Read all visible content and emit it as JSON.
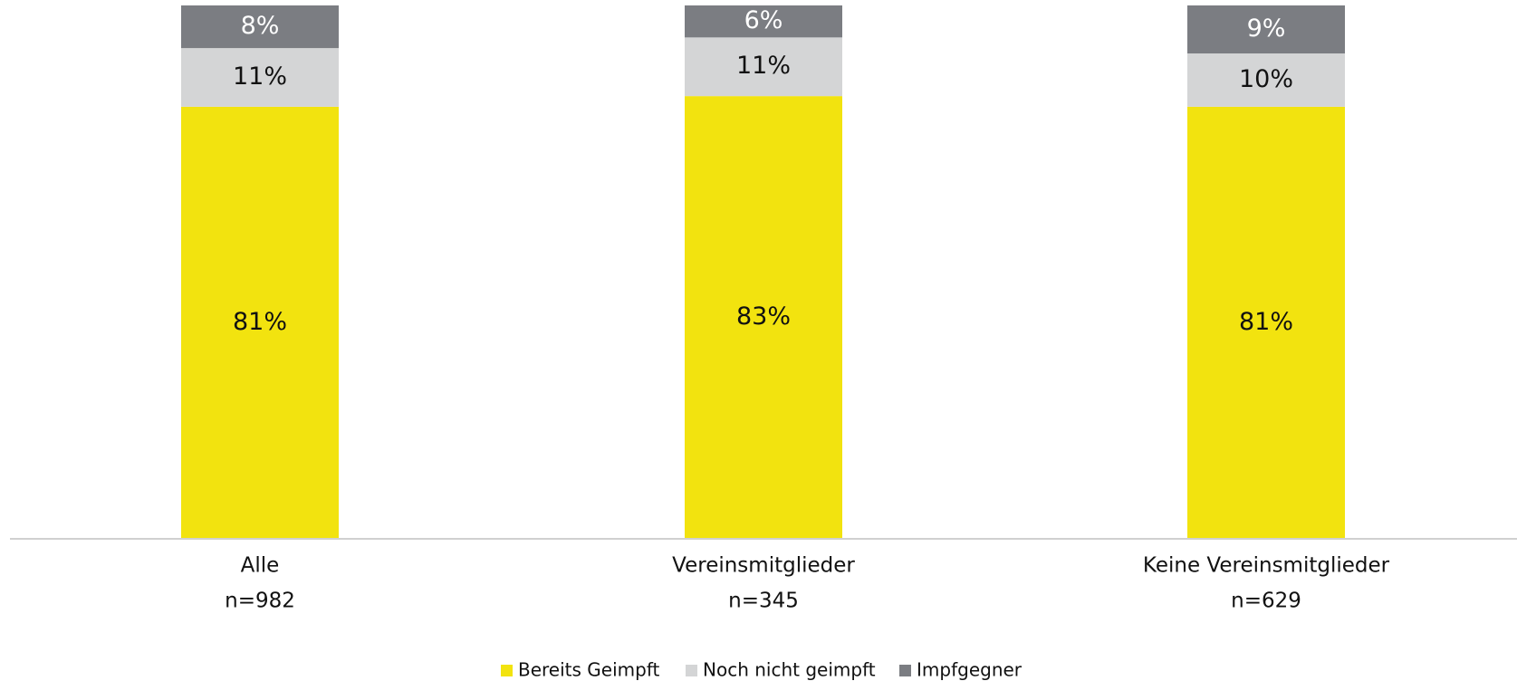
{
  "chart_data": {
    "type": "stacked_bar",
    "categories": [
      "Alle",
      "Vereinsmitglieder",
      "Keine Vereinsmitglieder"
    ],
    "sample_sizes": [
      "n=982",
      "n=345",
      "n=629"
    ],
    "ylim": [
      0,
      100
    ],
    "series": [
      {
        "name": "Bereits Geimpft",
        "color": "#f2e30f",
        "values": [
          81,
          83,
          81
        ],
        "value_labels": [
          "81%",
          "83%",
          "81%"
        ]
      },
      {
        "name": "Noch nicht geimpft",
        "color": "#d4d5d6",
        "values": [
          11,
          11,
          10
        ],
        "value_labels": [
          "11%",
          "11%",
          "10%"
        ]
      },
      {
        "name": "Impfgegner",
        "color": "#7b7d82",
        "values": [
          8,
          6,
          9
        ],
        "value_labels": [
          "8%",
          "6%",
          "9%"
        ]
      }
    ]
  }
}
